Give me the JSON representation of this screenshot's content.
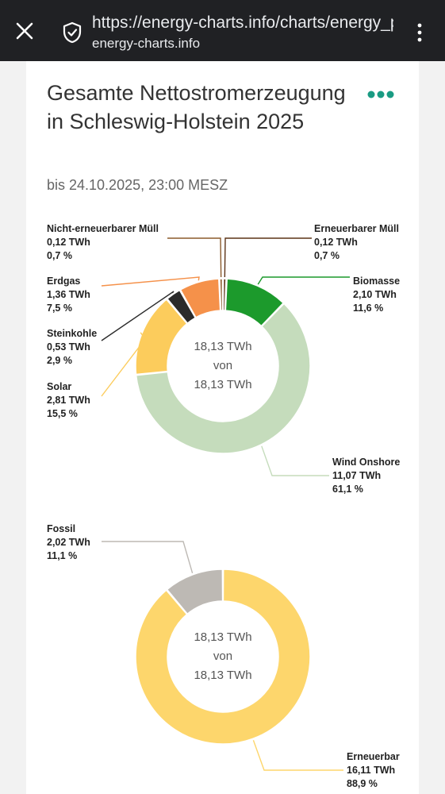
{
  "browser": {
    "url": "https://energy-charts.info/charts/energy_pie/chart.htm",
    "domain": "energy-charts.info"
  },
  "header": {
    "title": "Gesamte Nettostromerzeugung in Schleswig-Holstein 2025",
    "subtitle": "bis 24.10.2025, 23:00 MESZ"
  },
  "chart_data": [
    {
      "type": "pie",
      "variant": "donut",
      "unit": "TWh",
      "center": {
        "line1": "18,13 TWh",
        "line2": "von",
        "line3": "18,13 TWh"
      },
      "slices": [
        {
          "name": "Erneuerbarer Müll",
          "value": 0.12,
          "value_label": "0,12 TWh",
          "percent": 0.7,
          "percent_label": "0,7 %",
          "color": "#5c3317"
        },
        {
          "name": "Biomasse",
          "value": 2.1,
          "value_label": "2,10 TWh",
          "percent": 11.6,
          "percent_label": "11,6 %",
          "color": "#1c9a2c"
        },
        {
          "name": "Wind Onshore",
          "value": 11.07,
          "value_label": "11,07 TWh",
          "percent": 61.1,
          "percent_label": "61,1 %",
          "color": "#c5dcbc"
        },
        {
          "name": "Solar",
          "value": 2.81,
          "value_label": "2,81 TWh",
          "percent": 15.5,
          "percent_label": "15,5 %",
          "color": "#fccc5c"
        },
        {
          "name": "Steinkohle",
          "value": 0.53,
          "value_label": "0,53 TWh",
          "percent": 2.9,
          "percent_label": "2,9 %",
          "color": "#2b2b2b"
        },
        {
          "name": "Erdgas",
          "value": 1.36,
          "value_label": "1,36 TWh",
          "percent": 7.5,
          "percent_label": "7,5 %",
          "color": "#f5914a"
        },
        {
          "name": "Nicht-erneuerbarer Müll",
          "value": 0.12,
          "value_label": "0,12 TWh",
          "percent": 0.7,
          "percent_label": "0,7 %",
          "color": "#8b5a2b"
        }
      ]
    },
    {
      "type": "pie",
      "variant": "donut",
      "unit": "TWh",
      "center": {
        "line1": "18,13 TWh",
        "line2": "von",
        "line3": "18,13 TWh"
      },
      "slices": [
        {
          "name": "Erneuerbar",
          "value": 16.11,
          "value_label": "16,11 TWh",
          "percent": 88.9,
          "percent_label": "88,9 %",
          "color": "#fdd66c"
        },
        {
          "name": "Fossil",
          "value": 2.02,
          "value_label": "2,02 TWh",
          "percent": 11.1,
          "percent_label": "11,1 %",
          "color": "#bdb9b4"
        }
      ]
    }
  ]
}
